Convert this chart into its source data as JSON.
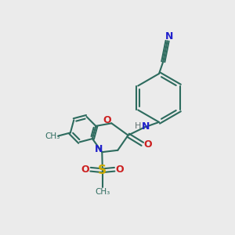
{
  "background_color": "#ebebeb",
  "bond_color": "#2d6b5e",
  "n_color": "#2020cc",
  "o_color": "#cc2020",
  "s_color": "#ccaa00",
  "c_color": "#2d6b5e",
  "h_color": "#607070",
  "figsize": [
    3.0,
    3.0
  ],
  "dpi": 100,
  "xlim": [
    0,
    10
  ],
  "ylim": [
    0,
    10
  ]
}
